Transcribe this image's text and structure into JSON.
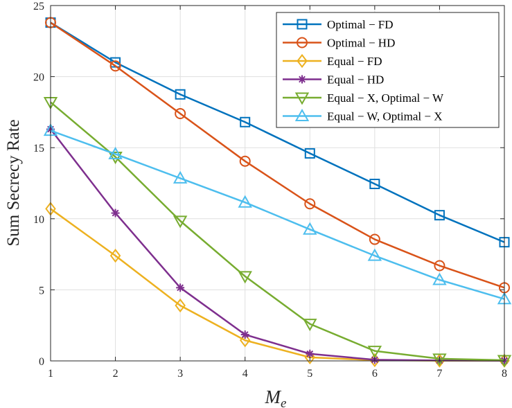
{
  "chart_data": {
    "type": "line",
    "title": "",
    "xlabel": "M_e",
    "xlabel_main": "M",
    "xlabel_sub": "e",
    "ylabel": "Sum Secrecy Rate",
    "x": [
      1,
      2,
      3,
      4,
      5,
      6,
      7,
      8
    ],
    "xlim": [
      1,
      8
    ],
    "ylim": [
      0,
      25
    ],
    "xticks": [
      "1",
      "2",
      "3",
      "4",
      "5",
      "6",
      "7",
      "8"
    ],
    "yticks": [
      "0",
      "5",
      "10",
      "15",
      "20",
      "25"
    ],
    "grid": true,
    "legend_position": "top-right",
    "series": [
      {
        "name": "Optimal − FD",
        "color": "#0072BD",
        "marker": "square",
        "values": [
          23.8,
          21.0,
          18.75,
          16.8,
          14.6,
          12.45,
          10.25,
          8.35
        ]
      },
      {
        "name": "Optimal − HD",
        "color": "#D95319",
        "marker": "circle",
        "values": [
          23.8,
          20.75,
          17.4,
          14.05,
          11.05,
          8.55,
          6.7,
          5.15
        ]
      },
      {
        "name": "Equal − FD",
        "color": "#EDB120",
        "marker": "diamond",
        "values": [
          10.7,
          7.4,
          3.9,
          1.45,
          0.25,
          0.05,
          0.02,
          0.02
        ]
      },
      {
        "name": "Equal − HD",
        "color": "#7E2F8E",
        "marker": "asterisk",
        "values": [
          16.3,
          10.4,
          5.15,
          1.85,
          0.5,
          0.08,
          0.03,
          0.02
        ]
      },
      {
        "name": "Equal − X, Optimal − W",
        "color": "#77AC30",
        "marker": "triangle-down",
        "values": [
          18.2,
          14.35,
          9.85,
          5.95,
          2.6,
          0.7,
          0.15,
          0.05
        ]
      },
      {
        "name": "Equal − W, Optimal − X",
        "color": "#4DBEEE",
        "marker": "triangle-up",
        "values": [
          16.2,
          14.55,
          12.85,
          11.15,
          9.25,
          7.4,
          5.7,
          4.35
        ]
      }
    ]
  }
}
